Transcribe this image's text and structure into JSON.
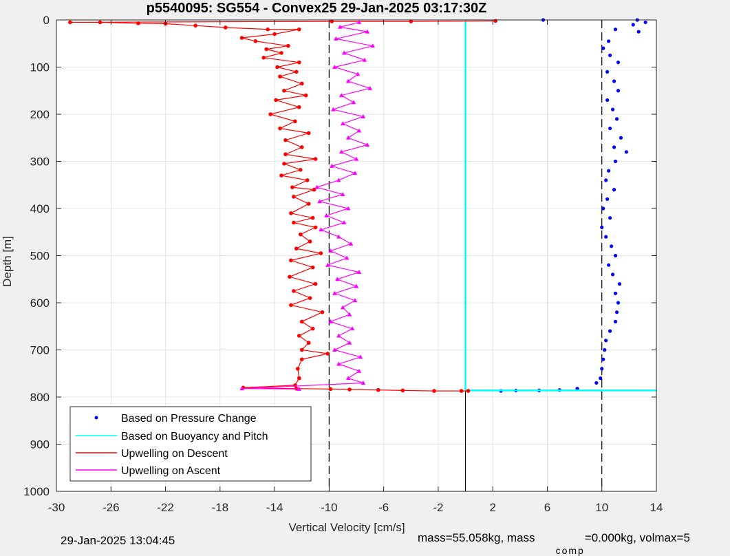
{
  "figure": {
    "footer_left": "29-Jan-2025 13:04:45",
    "footer_right_prefix": "mass=55.058kg, mass",
    "footer_right_sub": "comp",
    "footer_right_suffix": "=0.000kg, volmax=5"
  },
  "chart_data": {
    "type": "scatter",
    "title": "p5540095: SG554 - Convex25 29-Jan-2025 03:17:30Z",
    "xlabel": "Vertical Velocity [cm/s]",
    "ylabel": "Depth [m]",
    "xlim": [
      -30,
      14
    ],
    "ylim": [
      1000,
      0
    ],
    "y_reversed": true,
    "xticks": [
      -30,
      -26,
      -22,
      -18,
      -14,
      -10,
      -6,
      -2,
      2,
      6,
      10,
      14
    ],
    "yticks": [
      0,
      100,
      200,
      300,
      400,
      500,
      600,
      700,
      800,
      900,
      1000
    ],
    "grid": true,
    "reference_lines": {
      "dashed_x": [
        -10,
        10
      ],
      "solid_x": [
        0
      ]
    },
    "legend": {
      "placement": "bottom-left"
    },
    "series": [
      {
        "name": "Based on Pressure Change",
        "color": "#0000ff",
        "marker": "dot",
        "points": [
          [
            12.6,
            0
          ],
          [
            13.2,
            5
          ],
          [
            12.3,
            10
          ],
          [
            11.0,
            20
          ],
          [
            12.7,
            25
          ],
          [
            10.5,
            45
          ],
          [
            10.1,
            60
          ],
          [
            10.6,
            75
          ],
          [
            11.2,
            90
          ],
          [
            10.4,
            110
          ],
          [
            10.9,
            130
          ],
          [
            11.2,
            150
          ],
          [
            10.4,
            170
          ],
          [
            10.8,
            190
          ],
          [
            11.1,
            210
          ],
          [
            10.6,
            230
          ],
          [
            11.4,
            250
          ],
          [
            10.9,
            270
          ],
          [
            11.8,
            280
          ],
          [
            11.0,
            300
          ],
          [
            10.5,
            320
          ],
          [
            10.3,
            340
          ],
          [
            10.9,
            360
          ],
          [
            10.4,
            380
          ],
          [
            10.1,
            400
          ],
          [
            10.6,
            420
          ],
          [
            10.0,
            440
          ],
          [
            10.3,
            460
          ],
          [
            10.7,
            480
          ],
          [
            11.0,
            500
          ],
          [
            10.5,
            520
          ],
          [
            10.8,
            540
          ],
          [
            11.3,
            560
          ],
          [
            11.0,
            580
          ],
          [
            11.2,
            600
          ],
          [
            11.1,
            620
          ],
          [
            11.0,
            640
          ],
          [
            10.6,
            660
          ],
          [
            10.3,
            680
          ],
          [
            10.2,
            700
          ],
          [
            10.1,
            720
          ],
          [
            10.0,
            740
          ],
          [
            9.9,
            760
          ],
          [
            9.6,
            770
          ],
          [
            8.2,
            782
          ],
          [
            6.9,
            785
          ],
          [
            5.4,
            786
          ],
          [
            3.7,
            786
          ],
          [
            2.6,
            787
          ],
          [
            5.7,
            0
          ]
        ]
      },
      {
        "name": "Based on Buoyancy and Pitch",
        "color": "#00ffff",
        "marker": "line",
        "points": [
          [
            0,
            0
          ],
          [
            0,
            100
          ],
          [
            0,
            200
          ],
          [
            0,
            300
          ],
          [
            0,
            400
          ],
          [
            0,
            500
          ],
          [
            0,
            600
          ],
          [
            0,
            700
          ],
          [
            0,
            786
          ],
          [
            2,
            786
          ],
          [
            6,
            786
          ],
          [
            10,
            786
          ],
          [
            12.6,
            786
          ],
          [
            14,
            786
          ]
        ]
      },
      {
        "name": "Upwelling on Descent",
        "color": "#ff0000",
        "marker": "line-dot",
        "points": [
          [
            2.2,
            2
          ],
          [
            -4.0,
            3
          ],
          [
            -9.8,
            3
          ],
          [
            -29.0,
            5
          ],
          [
            -26.8,
            5
          ],
          [
            -24.0,
            7
          ],
          [
            -22.0,
            8
          ],
          [
            -19.8,
            12
          ],
          [
            -17.6,
            16
          ],
          [
            -14.5,
            20
          ],
          [
            -12.2,
            20
          ],
          [
            -14.0,
            30
          ],
          [
            -16.4,
            38
          ],
          [
            -15.4,
            45
          ],
          [
            -13.0,
            55
          ],
          [
            -14.6,
            62
          ],
          [
            -13.5,
            70
          ],
          [
            -14.8,
            80
          ],
          [
            -12.2,
            90
          ],
          [
            -13.8,
            100
          ],
          [
            -12.4,
            110
          ],
          [
            -13.6,
            120
          ],
          [
            -12.0,
            135
          ],
          [
            -13.3,
            150
          ],
          [
            -11.7,
            160
          ],
          [
            -13.9,
            170
          ],
          [
            -12.2,
            185
          ],
          [
            -14.3,
            200
          ],
          [
            -12.5,
            215
          ],
          [
            -13.6,
            230
          ],
          [
            -11.5,
            240
          ],
          [
            -13.2,
            255
          ],
          [
            -12.0,
            270
          ],
          [
            -13.2,
            285
          ],
          [
            -11.0,
            295
          ],
          [
            -13.3,
            305
          ],
          [
            -12.1,
            318
          ],
          [
            -13.5,
            330
          ],
          [
            -11.6,
            340
          ],
          [
            -12.7,
            355
          ],
          [
            -11.1,
            360
          ],
          [
            -12.6,
            375
          ],
          [
            -11.5,
            390
          ],
          [
            -12.8,
            410
          ],
          [
            -11.2,
            420
          ],
          [
            -12.6,
            430
          ],
          [
            -11.0,
            440
          ],
          [
            -12.1,
            455
          ],
          [
            -11.4,
            470
          ],
          [
            -12.4,
            485
          ],
          [
            -10.6,
            495
          ],
          [
            -12.8,
            510
          ],
          [
            -11.2,
            525
          ],
          [
            -12.9,
            545
          ],
          [
            -11.0,
            560
          ],
          [
            -12.6,
            575
          ],
          [
            -11.4,
            590
          ],
          [
            -12.8,
            605
          ],
          [
            -10.5,
            620
          ],
          [
            -12.0,
            640
          ],
          [
            -11.2,
            655
          ],
          [
            -12.2,
            670
          ],
          [
            -11.5,
            685
          ],
          [
            -12.0,
            700
          ],
          [
            -10.1,
            708
          ],
          [
            -12.0,
            720
          ],
          [
            -12.3,
            740
          ],
          [
            -12.2,
            760
          ],
          [
            -12.5,
            775
          ],
          [
            -16.3,
            780
          ],
          [
            -12.4,
            782
          ],
          [
            -9.9,
            783
          ],
          [
            -8.5,
            784
          ],
          [
            -6.4,
            785
          ],
          [
            -4.6,
            786
          ],
          [
            -2.3,
            787
          ],
          [
            -0.3,
            787
          ],
          [
            0.2,
            787
          ]
        ]
      },
      {
        "name": "Upwelling on Ascent",
        "color": "#ff00ff",
        "marker": "line-triangle",
        "points": [
          [
            -7.8,
            5
          ],
          [
            -9.2,
            15
          ],
          [
            -7.2,
            25
          ],
          [
            -9.5,
            40
          ],
          [
            -6.8,
            55
          ],
          [
            -8.9,
            70
          ],
          [
            -7.4,
            85
          ],
          [
            -9.6,
            100
          ],
          [
            -7.9,
            115
          ],
          [
            -8.6,
            130
          ],
          [
            -7.0,
            145
          ],
          [
            -9.1,
            160
          ],
          [
            -8.2,
            175
          ],
          [
            -9.7,
            190
          ],
          [
            -7.5,
            205
          ],
          [
            -9.0,
            220
          ],
          [
            -7.8,
            235
          ],
          [
            -8.6,
            250
          ],
          [
            -7.2,
            265
          ],
          [
            -9.1,
            280
          ],
          [
            -8.0,
            295
          ],
          [
            -9.8,
            310
          ],
          [
            -8.1,
            325
          ],
          [
            -9.3,
            340
          ],
          [
            -10.9,
            355
          ],
          [
            -9.0,
            370
          ],
          [
            -10.7,
            385
          ],
          [
            -8.6,
            400
          ],
          [
            -10.2,
            415
          ],
          [
            -8.9,
            430
          ],
          [
            -10.6,
            445
          ],
          [
            -9.3,
            460
          ],
          [
            -8.4,
            475
          ],
          [
            -9.9,
            490
          ],
          [
            -8.7,
            505
          ],
          [
            -10.1,
            520
          ],
          [
            -7.8,
            535
          ],
          [
            -9.4,
            550
          ],
          [
            -8.0,
            565
          ],
          [
            -9.6,
            580
          ],
          [
            -8.1,
            595
          ],
          [
            -9.0,
            610
          ],
          [
            -8.5,
            625
          ],
          [
            -9.9,
            640
          ],
          [
            -8.3,
            655
          ],
          [
            -9.3,
            670
          ],
          [
            -8.5,
            685
          ],
          [
            -9.6,
            700
          ],
          [
            -7.7,
            715
          ],
          [
            -9.3,
            730
          ],
          [
            -7.8,
            745
          ],
          [
            -8.6,
            760
          ],
          [
            -7.5,
            770
          ],
          [
            -16.4,
            782
          ],
          [
            -12.2,
            783
          ]
        ]
      }
    ],
    "legend_entries": [
      "Based on Pressure Change",
      "Based on Buoyancy and Pitch",
      "Upwelling on Descent",
      "Upwelling on Ascent"
    ]
  }
}
